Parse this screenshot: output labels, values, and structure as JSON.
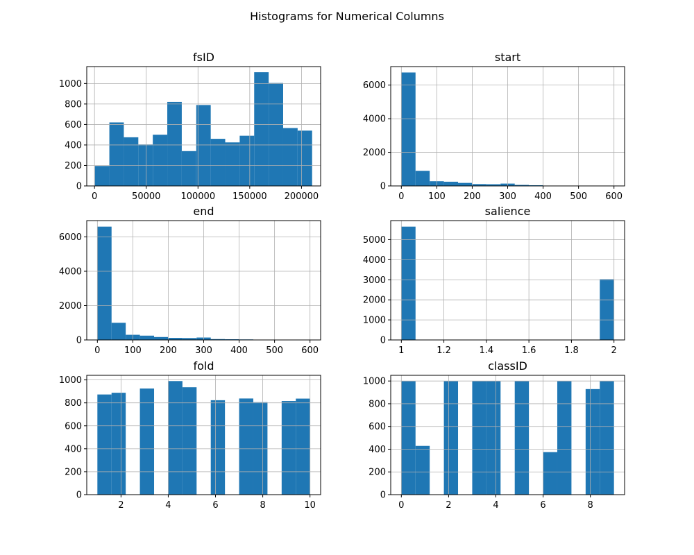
{
  "figure_title": "Histograms for Numerical Columns",
  "colors": {
    "bar": "#1f77b4",
    "grid": "#b0b0b0",
    "axes": "#000000",
    "background": "#ffffff"
  },
  "chart_data": [
    {
      "type": "bar",
      "title": "fsID",
      "bins": 15,
      "xlim": [
        -7500,
        218500
      ],
      "ylim": [
        0,
        1165
      ],
      "xticks": [
        0,
        50000,
        100000,
        150000,
        200000
      ],
      "yticks": [
        0,
        200,
        400,
        600,
        800,
        1000
      ],
      "grid": true,
      "bin_edges": [
        344,
        14339,
        28334,
        42329,
        56324,
        70319,
        84314,
        98309,
        112304,
        126299,
        140294,
        154289,
        168284,
        182279,
        196274,
        210269
      ],
      "counts": [
        195,
        620,
        475,
        405,
        500,
        820,
        340,
        790,
        460,
        425,
        490,
        1110,
        1005,
        565,
        540
      ]
    },
    {
      "type": "bar",
      "title": "start",
      "bins": 15,
      "xlim": [
        -30,
        630
      ],
      "ylim": [
        0,
        7100
      ],
      "xticks": [
        0,
        100,
        200,
        300,
        400,
        500,
        600
      ],
      "yticks": [
        0,
        2000,
        4000,
        6000
      ],
      "grid": true,
      "bin_edges": [
        0,
        40,
        80,
        120,
        160,
        200,
        240,
        280,
        320,
        360,
        400,
        440,
        480,
        520,
        560,
        600
      ],
      "counts": [
        6750,
        900,
        280,
        250,
        180,
        110,
        100,
        140,
        60,
        40,
        20,
        15,
        10,
        5,
        5
      ]
    },
    {
      "type": "bar",
      "title": "end",
      "bins": 15,
      "xlim": [
        -30,
        630
      ],
      "ylim": [
        0,
        6950
      ],
      "xticks": [
        0,
        100,
        200,
        300,
        400,
        500,
        600
      ],
      "yticks": [
        0,
        2000,
        4000,
        6000
      ],
      "grid": true,
      "bin_edges": [
        0,
        40,
        80,
        120,
        160,
        200,
        240,
        280,
        320,
        360,
        400,
        440,
        480,
        520,
        560,
        600
      ],
      "counts": [
        6600,
        1000,
        300,
        250,
        170,
        120,
        110,
        140,
        50,
        40,
        30,
        20,
        15,
        10,
        5
      ]
    },
    {
      "type": "bar",
      "title": "salience",
      "bins": 15,
      "xlim": [
        0.95,
        2.05
      ],
      "ylim": [
        0,
        5950
      ],
      "xticks": [
        1.0,
        1.2,
        1.4,
        1.6,
        1.8,
        2.0
      ],
      "yticks": [
        0,
        1000,
        2000,
        3000,
        4000,
        5000
      ],
      "grid": true,
      "bin_edges": [
        1.0,
        1.0667,
        1.1333,
        1.2,
        1.2667,
        1.3333,
        1.4,
        1.4667,
        1.5333,
        1.6,
        1.6667,
        1.7333,
        1.8,
        1.8667,
        1.9333,
        2.0
      ],
      "counts": [
        5650,
        0,
        0,
        0,
        0,
        0,
        0,
        0,
        0,
        0,
        0,
        0,
        0,
        0,
        3030
      ]
    },
    {
      "type": "bar",
      "title": "fold",
      "bins": 15,
      "xlim": [
        0.55,
        10.45
      ],
      "ylim": [
        0,
        1040
      ],
      "xticks": [
        2,
        4,
        6,
        8,
        10
      ],
      "yticks": [
        0,
        200,
        400,
        600,
        800,
        1000
      ],
      "grid": true,
      "bin_edges": [
        1.0,
        1.6,
        2.2,
        2.8,
        3.4,
        4.0,
        4.6,
        5.2,
        5.8,
        6.4,
        7.0,
        7.6,
        8.2,
        8.8,
        9.4,
        10.0
      ],
      "counts": [
        873,
        888,
        0,
        925,
        0,
        990,
        936,
        0,
        823,
        0,
        838,
        806,
        0,
        816,
        837
      ]
    },
    {
      "type": "bar",
      "title": "classID",
      "bins": 15,
      "xlim": [
        -0.45,
        9.45
      ],
      "ylim": [
        0,
        1050
      ],
      "xticks": [
        0,
        2,
        4,
        6,
        8
      ],
      "yticks": [
        0,
        200,
        400,
        600,
        800,
        1000
      ],
      "grid": true,
      "bin_edges": [
        0,
        0.6,
        1.2,
        1.8,
        2.4,
        3.0,
        3.6,
        4.2,
        4.8,
        5.4,
        6.0,
        6.6,
        7.2,
        7.8,
        8.4,
        9.0
      ],
      "counts": [
        1000,
        429,
        0,
        1000,
        0,
        1000,
        1000,
        0,
        1000,
        0,
        374,
        1000,
        0,
        929,
        1000
      ]
    }
  ]
}
